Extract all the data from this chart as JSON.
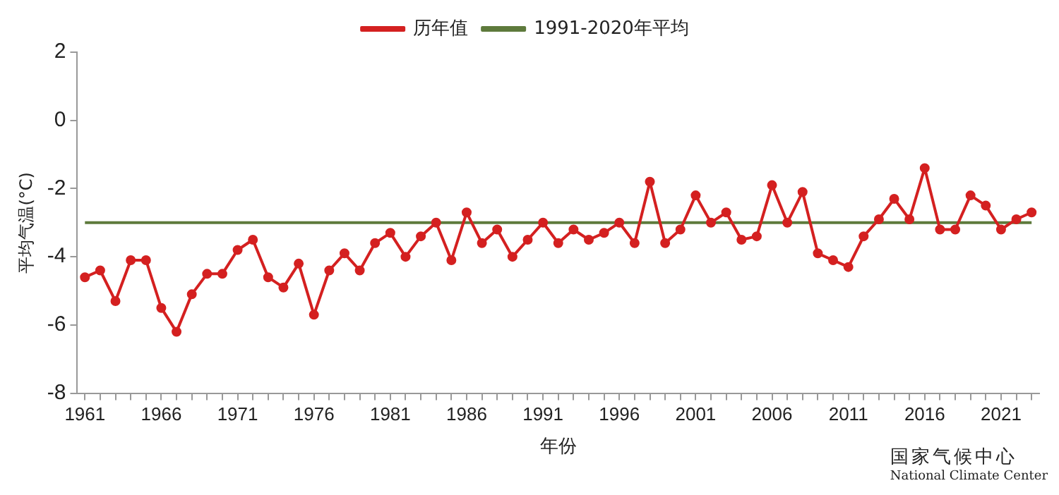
{
  "chart_data": {
    "type": "line",
    "xlabel": "年份",
    "ylabel": "平均气温(°C)",
    "x": [
      1961,
      1962,
      1963,
      1964,
      1965,
      1966,
      1967,
      1968,
      1969,
      1970,
      1971,
      1972,
      1973,
      1974,
      1975,
      1976,
      1977,
      1978,
      1979,
      1980,
      1981,
      1982,
      1983,
      1984,
      1985,
      1986,
      1987,
      1988,
      1989,
      1990,
      1991,
      1992,
      1993,
      1994,
      1995,
      1996,
      1997,
      1998,
      1999,
      2000,
      2001,
      2002,
      2003,
      2004,
      2005,
      2006,
      2007,
      2008,
      2009,
      2010,
      2011,
      2012,
      2013,
      2014,
      2015,
      2016,
      2017,
      2018,
      2019,
      2020,
      2021,
      2022,
      2023
    ],
    "series": [
      {
        "name": "历年值",
        "color": "#d42020",
        "marker": "circle",
        "values": [
          -4.6,
          -4.4,
          -5.3,
          -4.1,
          -4.1,
          -5.5,
          -6.2,
          -5.1,
          -4.5,
          -4.5,
          -3.8,
          -3.5,
          -4.6,
          -4.9,
          -4.2,
          -5.7,
          -4.4,
          -3.9,
          -4.4,
          -3.6,
          -3.3,
          -4.0,
          -3.4,
          -3.0,
          -4.1,
          -2.7,
          -3.6,
          -3.2,
          -4.0,
          -3.5,
          -3.0,
          -3.6,
          -3.2,
          -3.5,
          -3.3,
          -3.0,
          -3.6,
          -1.8,
          -3.6,
          -3.2,
          -2.2,
          -3.0,
          -2.7,
          -3.5,
          -3.4,
          -1.9,
          -3.0,
          -2.1,
          -3.9,
          -4.1,
          -4.3,
          -3.4,
          -2.9,
          -2.3,
          -2.9,
          -1.4,
          -3.2,
          -3.2,
          -2.2,
          -2.5,
          -3.2,
          -2.9,
          -2.7
        ]
      },
      {
        "name": "1991-2020年平均",
        "color": "#5e7a3c",
        "marker": "none",
        "values": [
          -3.0,
          -3.0,
          -3.0,
          -3.0,
          -3.0,
          -3.0,
          -3.0,
          -3.0,
          -3.0,
          -3.0,
          -3.0,
          -3.0,
          -3.0,
          -3.0,
          -3.0,
          -3.0,
          -3.0,
          -3.0,
          -3.0,
          -3.0,
          -3.0,
          -3.0,
          -3.0,
          -3.0,
          -3.0,
          -3.0,
          -3.0,
          -3.0,
          -3.0,
          -3.0,
          -3.0,
          -3.0,
          -3.0,
          -3.0,
          -3.0,
          -3.0,
          -3.0,
          -3.0,
          -3.0,
          -3.0,
          -3.0,
          -3.0,
          -3.0,
          -3.0,
          -3.0,
          -3.0,
          -3.0,
          -3.0,
          -3.0,
          -3.0,
          -3.0,
          -3.0,
          -3.0,
          -3.0,
          -3.0,
          -3.0,
          -3.0,
          -3.0,
          -3.0,
          -3.0,
          -3.0,
          -3.0,
          -3.0
        ]
      }
    ],
    "xlim": [
      1960.5,
      2023.5
    ],
    "xticks": [
      1961,
      {
        "value": 1962,
        "label": null
      },
      {
        "value": 1963,
        "label": null
      },
      {
        "value": 1964,
        "label": null
      },
      {
        "value": 1965,
        "label": null
      },
      1966,
      {
        "value": 1967,
        "label": null
      },
      {
        "value": 1968,
        "label": null
      },
      {
        "value": 1969,
        "label": null
      },
      {
        "value": 1970,
        "label": null
      },
      1971,
      {
        "value": 1972,
        "label": null
      },
      {
        "value": 1973,
        "label": null
      },
      {
        "value": 1974,
        "label": null
      },
      {
        "value": 1975,
        "label": null
      },
      1976,
      {
        "value": 1977,
        "label": null
      },
      {
        "value": 1978,
        "label": null
      },
      {
        "value": 1979,
        "label": null
      },
      {
        "value": 1980,
        "label": null
      },
      1981,
      {
        "value": 1982,
        "label": null
      },
      {
        "value": 1983,
        "label": null
      },
      {
        "value": 1984,
        "label": null
      },
      {
        "value": 1985,
        "label": null
      },
      1986,
      {
        "value": 1987,
        "label": null
      },
      {
        "value": 1988,
        "label": null
      },
      {
        "value": 1989,
        "label": null
      },
      {
        "value": 1990,
        "label": null
      },
      1991,
      {
        "value": 1992,
        "label": null
      },
      {
        "value": 1993,
        "label": null
      },
      {
        "value": 1994,
        "label": null
      },
      {
        "value": 1995,
        "label": null
      },
      1996,
      {
        "value": 1997,
        "label": null
      },
      {
        "value": 1998,
        "label": null
      },
      {
        "value": 1999,
        "label": null
      },
      {
        "value": 2000,
        "label": null
      },
      2001,
      {
        "value": 2002,
        "label": null
      },
      {
        "value": 2003,
        "label": null
      },
      {
        "value": 2004,
        "label": null
      },
      {
        "value": 2005,
        "label": null
      },
      2006,
      {
        "value": 2007,
        "label": null
      },
      {
        "value": 2008,
        "label": null
      },
      {
        "value": 2009,
        "label": null
      },
      {
        "value": 2010,
        "label": null
      },
      2011,
      {
        "value": 2012,
        "label": null
      },
      {
        "value": 2013,
        "label": null
      },
      {
        "value": 2014,
        "label": null
      },
      {
        "value": 2015,
        "label": null
      },
      2016,
      {
        "value": 2017,
        "label": null
      },
      {
        "value": 2018,
        "label": null
      },
      {
        "value": 2019,
        "label": null
      },
      {
        "value": 2020,
        "label": null
      },
      2021,
      {
        "value": 2022,
        "label": null
      },
      {
        "value": 2023,
        "label": null
      }
    ],
    "ylim": [
      -8,
      2
    ],
    "yticks": [
      -8,
      -6,
      -4,
      -2,
      0,
      2
    ],
    "legend": "top",
    "line_style": "solid",
    "annotations": [
      "国家气候中心",
      "National Climate Center"
    ]
  }
}
